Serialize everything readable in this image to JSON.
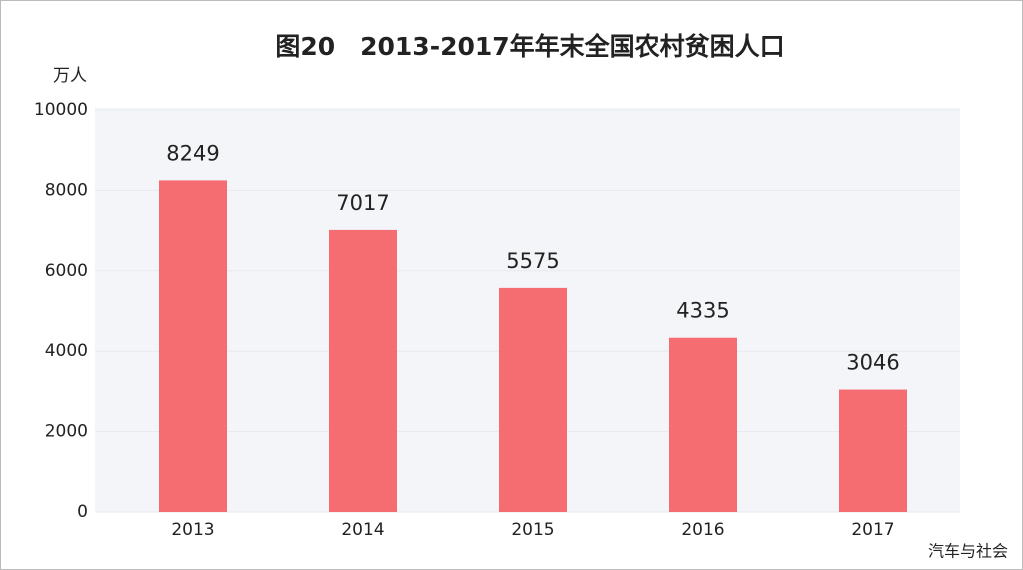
{
  "chart_data": {
    "type": "bar",
    "title": "图20　2013-2017年年末全国农村贫困人口",
    "y_unit": "万人",
    "categories": [
      "2013",
      "2014",
      "2015",
      "2016",
      "2017"
    ],
    "values": [
      8249,
      7017,
      5575,
      4335,
      3046
    ],
    "color": "#f56d71",
    "ylim": [
      0,
      10000
    ],
    "yticks": [
      0,
      2000,
      4000,
      6000,
      8000,
      10000
    ],
    "grid": true
  },
  "watermark": "汽车与社会"
}
